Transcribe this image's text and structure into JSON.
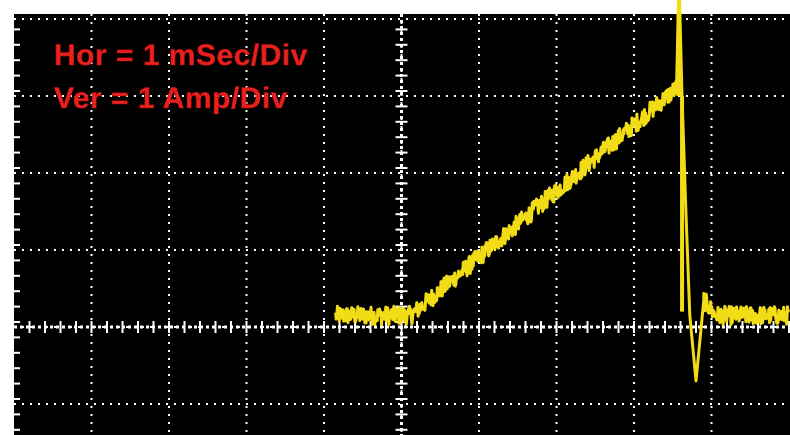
{
  "annotations": {
    "horizontal": "Hor = 1 mSec/Div",
    "vertical": "Ver = 1 Amp/Div"
  },
  "colors": {
    "screen_background": "#000000",
    "frame": "#ffffff",
    "grid": "#ffffff",
    "trace": "#f2dc16",
    "annotation_text": "#e8201e"
  },
  "chart_data": {
    "type": "line",
    "title": "",
    "xlabel": "",
    "ylabel": "",
    "x_units": "ms",
    "y_units": "A",
    "x_divisions": 10,
    "y_divisions": 5.5,
    "xlim": [
      0,
      10
    ],
    "ylim": [
      0,
      5.5
    ],
    "grid": true,
    "series": [
      {
        "name": "",
        "color": "#f2dc16",
        "noise_amplitude": 0.12,
        "points": [
          {
            "x": 4.15,
            "y": 1.15
          },
          {
            "x": 5.12,
            "y": 1.15
          },
          {
            "x": 8.55,
            "y": 4.1
          },
          {
            "x": 8.58,
            "y": 5.55
          },
          {
            "x": 8.62,
            "y": 4.0
          },
          {
            "x": 8.67,
            "y": 2.5
          },
          {
            "x": 8.72,
            "y": 1.15
          },
          {
            "x": 8.8,
            "y": 0.3
          },
          {
            "x": 8.9,
            "y": 1.35
          },
          {
            "x": 9.05,
            "y": 1.15
          },
          {
            "x": 10.0,
            "y": 1.15
          }
        ]
      }
    ]
  }
}
